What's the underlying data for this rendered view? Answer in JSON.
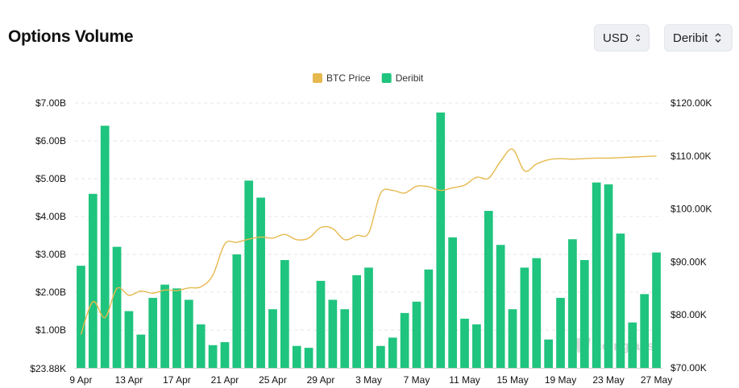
{
  "header": {
    "title": "Options Volume",
    "currency_select": "USD",
    "exchange_select": "Deribit"
  },
  "watermark": "coinglass",
  "colors": {
    "btc_price": "#E6B94E",
    "deribit": "#1FC47E",
    "grid": "#e6e6e6"
  },
  "chart_data": {
    "type": "bar",
    "legend": [
      {
        "name": "BTC Price",
        "color": "#E6B94E"
      },
      {
        "name": "Deribit",
        "color": "#1FC47E"
      }
    ],
    "legend_position": "top-center",
    "x_tick_labels": [
      "9 Apr",
      "13 Apr",
      "17 Apr",
      "21 Apr",
      "25 Apr",
      "29 Apr",
      "3 May",
      "7 May",
      "11 May",
      "15 May",
      "19 May",
      "23 May",
      "27 May"
    ],
    "y_left_ticks": [
      "$23.88K",
      "$1.00B",
      "$2.00B",
      "$3.00B",
      "$4.00B",
      "$5.00B",
      "$6.00B",
      "$7.00B"
    ],
    "y_left_range": [
      0,
      7000000000
    ],
    "y_right_ticks": [
      "$70.00K",
      "$80.00K",
      "$90.00K",
      "$100.00K",
      "$110.00K",
      "$120.00K"
    ],
    "y_right_range": [
      70000,
      120000
    ],
    "grid": true,
    "categories": [
      "9 Apr",
      "10 Apr",
      "11 Apr",
      "12 Apr",
      "13 Apr",
      "14 Apr",
      "15 Apr",
      "16 Apr",
      "17 Apr",
      "18 Apr",
      "19 Apr",
      "20 Apr",
      "21 Apr",
      "22 Apr",
      "23 Apr",
      "24 Apr",
      "25 Apr",
      "26 Apr",
      "27 Apr",
      "28 Apr",
      "29 Apr",
      "30 Apr",
      "1 May",
      "2 May",
      "3 May",
      "4 May",
      "5 May",
      "6 May",
      "7 May",
      "8 May",
      "9 May",
      "10 May",
      "11 May",
      "12 May",
      "13 May",
      "14 May",
      "15 May",
      "16 May",
      "17 May",
      "18 May",
      "19 May",
      "20 May",
      "21 May",
      "22 May",
      "23 May",
      "24 May",
      "25 May",
      "26 May",
      "27 May"
    ],
    "series": [
      {
        "name": "Deribit",
        "axis": "left",
        "type": "bar",
        "values": [
          2.7,
          4.6,
          6.4,
          3.2,
          1.5,
          0.88,
          1.85,
          2.2,
          2.1,
          1.8,
          1.15,
          0.6,
          0.68,
          3.0,
          4.95,
          4.5,
          1.55,
          2.85,
          0.58,
          0.53,
          2.3,
          1.8,
          1.55,
          2.45,
          2.65,
          0.58,
          0.8,
          1.45,
          1.75,
          2.6,
          6.75,
          3.45,
          1.3,
          1.15,
          4.15,
          3.25,
          1.55,
          2.65,
          2.9,
          0.75,
          1.85,
          3.4,
          2.85,
          4.9,
          4.85,
          3.55,
          1.2,
          1.95,
          3.05
        ]
      },
      {
        "name": "BTC Price",
        "axis": "right",
        "type": "line",
        "values": [
          76300,
          82500,
          79500,
          85000,
          83700,
          84500,
          84100,
          84700,
          84600,
          85100,
          85300,
          87500,
          93400,
          93700,
          94300,
          94700,
          94500,
          95200,
          94200,
          94500,
          96500,
          96300,
          94200,
          95000,
          95500,
          103000,
          103500,
          103000,
          104300,
          104200,
          103500,
          104000,
          104500,
          106000,
          105800,
          109000,
          111300,
          107200,
          108500,
          109300,
          109500,
          109400,
          109500,
          109600,
          109600,
          109700,
          109800,
          109900,
          110000
        ]
      }
    ]
  }
}
